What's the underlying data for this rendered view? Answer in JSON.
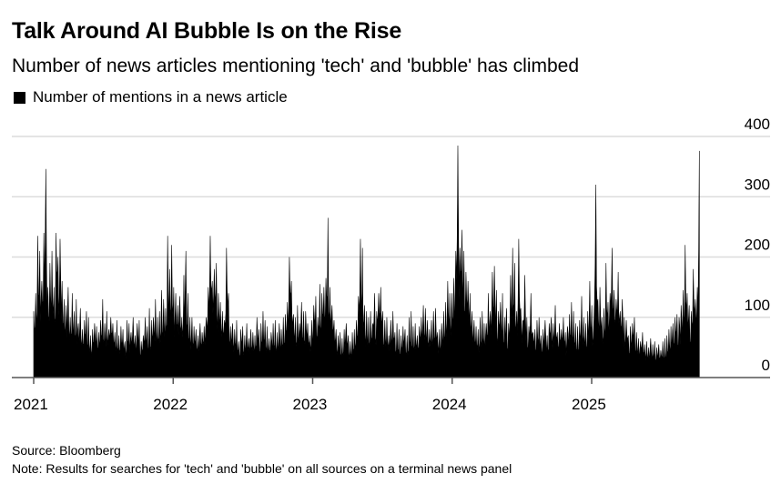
{
  "chart_data": {
    "type": "area",
    "title": "Talk Around AI Bubble Is on the Rise",
    "subtitle": "Number of news articles mentioning 'tech' and 'bubble' has climbed",
    "legend": [
      {
        "label": "Number of mentions in a news article",
        "color": "#000000"
      }
    ],
    "legend_placement": "top-left",
    "xlabel": "",
    "ylabel": "",
    "x_tick_labels": [
      "2021",
      "2022",
      "2023",
      "2024",
      "2025"
    ],
    "y_tick_labels": [
      "0",
      "100",
      "200",
      "300",
      "400"
    ],
    "y_ticks": [
      0,
      100,
      200,
      300,
      400
    ],
    "ylim": [
      0,
      400
    ],
    "xlim": [
      "2021-01-01",
      "2026-01-01"
    ],
    "y_axis_position": "right",
    "grid": true,
    "series_resolution": "weekly (approximate peak per week, estimated from chart)",
    "series_start": "2021-01-01",
    "series_end": "2025-10-10",
    "series": [
      {
        "name": "Number of mentions in a news article",
        "color": "#000000",
        "values": [
          110,
          140,
          235,
          210,
          160,
          240,
          346,
          150,
          190,
          210,
          150,
          240,
          200,
          230,
          160,
          130,
          120,
          150,
          100,
          140,
          110,
          130,
          90,
          115,
          80,
          95,
          110,
          100,
          70,
          80,
          90,
          85,
          75,
          95,
          130,
          90,
          110,
          80,
          100,
          90,
          75,
          95,
          70,
          85,
          80,
          60,
          95,
          90,
          75,
          100,
          70,
          90,
          95,
          60,
          70,
          100,
          85,
          115,
          95,
          100,
          130,
          100,
          110,
          145,
          130,
          115,
          235,
          180,
          220,
          150,
          140,
          120,
          135,
          100,
          170,
          210,
          140,
          100,
          100,
          85,
          80,
          70,
          90,
          75,
          85,
          100,
          150,
          235,
          160,
          180,
          190,
          140,
          125,
          110,
          95,
          215,
          140,
          85,
          90,
          80,
          95,
          60,
          80,
          85,
          70,
          90,
          65,
          80,
          75,
          70,
          100,
          80,
          90,
          110,
          95,
          85,
          65,
          75,
          90,
          95,
          75,
          90,
          80,
          100,
          105,
          125,
          200,
          160,
          105,
          100,
          120,
          90,
          125,
          110,
          110,
          90,
          70,
          95,
          120,
          135,
          100,
          155,
          140,
          150,
          165,
          265,
          150,
          120,
          95,
          80,
          70,
          75,
          65,
          80,
          90,
          70,
          60,
          75,
          80,
          95,
          135,
          230,
          215,
          120,
          110,
          100,
          110,
          90,
          140,
          110,
          140,
          150,
          110,
          95,
          100,
          70,
          95,
          110,
          75,
          90,
          80,
          70,
          85,
          80,
          70,
          100,
          110,
          85,
          90,
          70,
          85,
          100,
          120,
          115,
          95,
          80,
          95,
          110,
          115,
          75,
          80,
          90,
          110,
          125,
          160,
          140,
          140,
          165,
          210,
          385,
          215,
          245,
          210,
          175,
          160,
          140,
          110,
          95,
          85,
          80,
          100,
          110,
          90,
          90,
          140,
          110,
          175,
          185,
          145,
          110,
          125,
          140,
          100,
          115,
          90,
          170,
          215,
          190,
          110,
          230,
          115,
          95,
          170,
          100,
          85,
          140,
          75,
          80,
          95,
          100,
          70,
          80,
          95,
          70,
          90,
          100,
          90,
          120,
          75,
          90,
          80,
          100,
          75,
          85,
          105,
          125,
          110,
          90,
          85,
          95,
          135,
          100,
          90,
          110,
          160,
          120,
          90,
          320,
          130,
          150,
          100,
          115,
          190,
          125,
          140,
          215,
          145,
          130,
          175,
          110,
          130,
          100,
          95,
          70,
          85,
          90,
          100,
          75,
          65,
          60,
          75,
          55,
          60,
          50,
          65,
          55,
          60,
          50,
          55,
          45,
          60,
          65,
          70,
          80,
          85,
          90,
          100,
          105,
          100,
          120,
          145,
          220,
          140,
          120,
          110,
          180,
          130,
          150,
          376
        ]
      }
    ]
  },
  "footer": {
    "source": "Source: Bloomberg",
    "note": "Note: Results for searches for 'tech' and 'bubble' on all sources on a terminal news panel"
  }
}
